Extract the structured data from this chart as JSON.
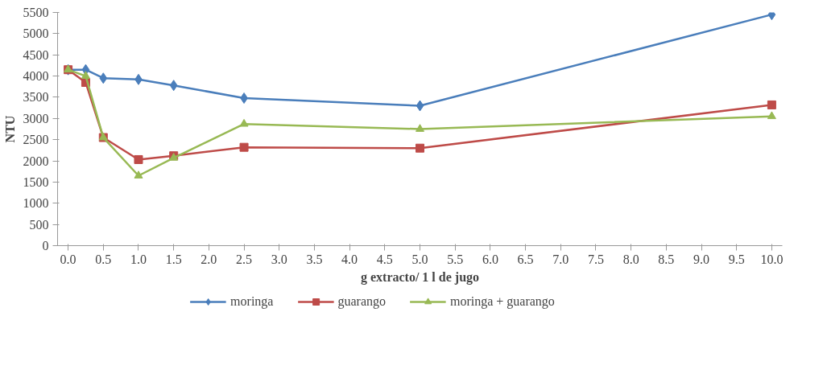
{
  "chart_data": {
    "type": "line",
    "xlabel": "g extracto/ 1 l de jugo",
    "ylabel": "NTU",
    "x": [
      0,
      0.25,
      0.5,
      1,
      1.5,
      2.5,
      5,
      10
    ],
    "series": [
      {
        "name": "moringa",
        "color": "#4a7ebb",
        "marker": "diamond",
        "values": [
          4150,
          4150,
          3950,
          3920,
          3780,
          3480,
          3300,
          5450
        ]
      },
      {
        "name": "guarango",
        "color": "#be4b48",
        "marker": "square",
        "values": [
          4150,
          3850,
          2550,
          2030,
          2120,
          2320,
          2300,
          3320
        ]
      },
      {
        "name": "moringa + guarango",
        "color": "#98b954",
        "marker": "triangle",
        "values": [
          4150,
          4000,
          2550,
          1650,
          2070,
          2870,
          2750,
          3050
        ]
      }
    ],
    "xlim": [
      -0.15,
      10.15
    ],
    "ylim": [
      0,
      5500
    ],
    "xticks": [
      {
        "value": 0,
        "label": "0.0"
      },
      {
        "value": 0.5,
        "label": "0.5"
      },
      {
        "value": 1,
        "label": "1.0"
      },
      {
        "value": 1.5,
        "label": "1.5"
      },
      {
        "value": 2,
        "label": "2.0"
      },
      {
        "value": 2.5,
        "label": "2.5"
      },
      {
        "value": 3,
        "label": "3.0"
      },
      {
        "value": 3.5,
        "label": "3.5"
      },
      {
        "value": 4,
        "label": "4.0"
      },
      {
        "value": 4.5,
        "label": "4.5"
      },
      {
        "value": 5,
        "label": "5.0"
      },
      {
        "value": 5.5,
        "label": "5.5"
      },
      {
        "value": 6,
        "label": "6.0"
      },
      {
        "value": 6.5,
        "label": "6.5"
      },
      {
        "value": 7,
        "label": "7.0"
      },
      {
        "value": 7.5,
        "label": "7.5"
      },
      {
        "value": 8,
        "label": "8.0"
      },
      {
        "value": 8.5,
        "label": "8.5"
      },
      {
        "value": 9,
        "label": "9.0"
      },
      {
        "value": 9.5,
        "label": "9.5"
      },
      {
        "value": 10,
        "label": "10.0"
      }
    ],
    "yticks": [
      0,
      500,
      1000,
      1500,
      2000,
      2500,
      3000,
      3500,
      4000,
      4500,
      5000,
      5500
    ],
    "grid": false,
    "legend": "bottom"
  }
}
